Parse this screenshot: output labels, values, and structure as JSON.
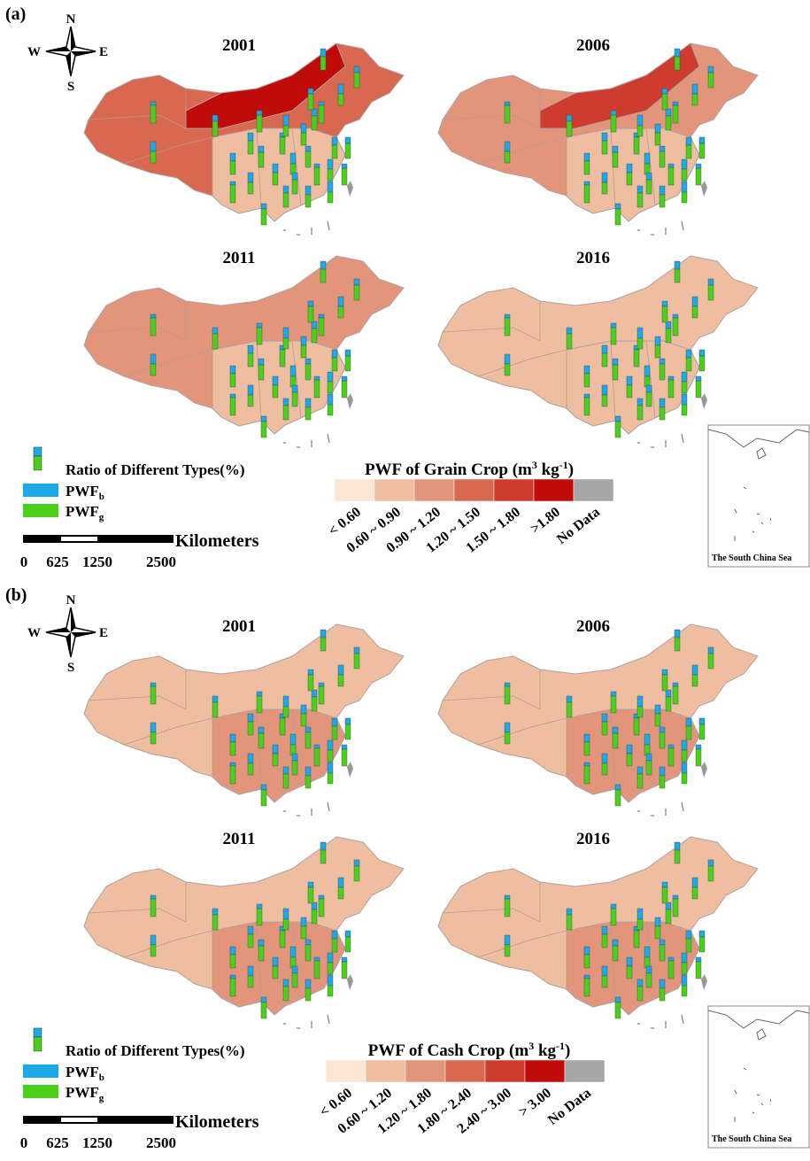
{
  "panels": [
    {
      "label": "(a)",
      "compass": {
        "n": "N",
        "s": "S",
        "w": "W",
        "e": "E"
      },
      "maps": [
        "2001",
        "2006",
        "2011",
        "2016"
      ],
      "legend": {
        "icon_label": "Ratio of Different Types(%)",
        "blue": {
          "name": "PWF",
          "sub": "b"
        },
        "green": {
          "name": "PWF",
          "sub": "g"
        }
      },
      "scale": {
        "unit": "Kilometers",
        "ticks": [
          "0",
          "625",
          "1250",
          "2500"
        ]
      },
      "color_legend": {
        "title": [
          "PWF of Grain Crop (m",
          "3",
          " kg",
          "-1",
          ")"
        ],
        "classes": [
          {
            "label": "< 0.60",
            "color": "#fce6d3"
          },
          {
            "label": "0.60 ~ 0.90",
            "color": "#efbea0"
          },
          {
            "label": "0.90 ~ 1.20",
            "color": "#e3957b"
          },
          {
            "label": "1.20 ~ 1.50",
            "color": "#d8684f"
          },
          {
            "label": "1.50 ~ 1.80",
            "color": "#cd3c2e"
          },
          {
            "label": ">1.80",
            "color": "#c10a0a"
          },
          {
            "label": "No Data",
            "color": "#a6a6a6"
          }
        ]
      },
      "inset": "The South China Sea"
    },
    {
      "label": "(b)",
      "compass": {
        "n": "N",
        "s": "S",
        "w": "W",
        "e": "E"
      },
      "maps": [
        "2001",
        "2006",
        "2011",
        "2016"
      ],
      "legend": {
        "icon_label": "Ratio of Different Types(%)",
        "blue": {
          "name": "PWF",
          "sub": "b"
        },
        "green": {
          "name": "PWF",
          "sub": "g"
        }
      },
      "scale": {
        "unit": "Kilometers",
        "ticks": [
          "0",
          "625",
          "1250",
          "2500"
        ]
      },
      "color_legend": {
        "title": [
          "PWF of Cash Crop (m",
          "3",
          " kg",
          "-1",
          ")"
        ],
        "classes": [
          {
            "label": "< 0.60",
            "color": "#fce6d3"
          },
          {
            "label": "0.60 ~ 1.20",
            "color": "#efbea0"
          },
          {
            "label": "1.20 ~ 1.80",
            "color": "#e3957b"
          },
          {
            "label": "1.80 ~ 2.40",
            "color": "#d8684f"
          },
          {
            "label": "2.40 ~ 3.00",
            "color": "#cd3c2e"
          },
          {
            "label": "> 3.00",
            "color": "#c10a0a"
          },
          {
            "label": "No Data",
            "color": "#a6a6a6"
          }
        ]
      },
      "inset": "The South China Sea"
    }
  ]
}
